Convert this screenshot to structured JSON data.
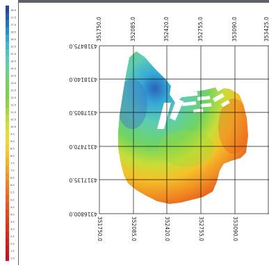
{
  "legend": {
    "labels": [
      "18.0",
      "17.5",
      "17.0",
      "16.5",
      "16.0",
      "15.5",
      "15.0",
      "14.5",
      "14.0",
      "13.5",
      "13.0",
      "12.5",
      "12.0",
      "11.5",
      "11.0",
      "10.5",
      "10.0",
      "9.5",
      "9.0",
      "8.5",
      "8.0",
      "7.5",
      "7.0",
      "6.5",
      "6.0",
      "5.5",
      "5.0",
      "4.5",
      "4.0",
      "3.5",
      "3.0",
      "2.5",
      "2.0",
      "1.5",
      "1.0"
    ],
    "colors": [
      "#24469f",
      "#1f5cb3",
      "#1e74c6",
      "#2090d0",
      "#2aa8d6",
      "#3cb9d2",
      "#4ec5c5",
      "#5ccdb4",
      "#63d19a",
      "#6ad37d",
      "#6fd461",
      "#74d44b",
      "#7bd33d",
      "#8fd53a",
      "#a6d939",
      "#bcdc36",
      "#d1df33",
      "#e2e030",
      "#efdb2c",
      "#f6cf29",
      "#f8c027",
      "#f8b025",
      "#f7a023",
      "#f59022",
      "#f38021",
      "#f07120",
      "#ed631f",
      "#e9561e",
      "#e5491d",
      "#e13d1d",
      "#dc321d",
      "#d7281d",
      "#d21f1e",
      "#cc181f",
      "#c61320"
    ]
  },
  "grid": {
    "top_x_labels": [
      "351750.0",
      "352085.0",
      "352420.0",
      "352755.0",
      "353090.0",
      "353425.0"
    ],
    "bottom_x_labels": [
      "351750.0",
      "352085.0",
      "352420.0",
      "352755.0",
      "353090.0"
    ],
    "y_labels": [
      "4318475.0",
      "4318140.0",
      "4317805.0",
      "4317470.0",
      "4317135.0",
      "4316800.0"
    ]
  }
}
